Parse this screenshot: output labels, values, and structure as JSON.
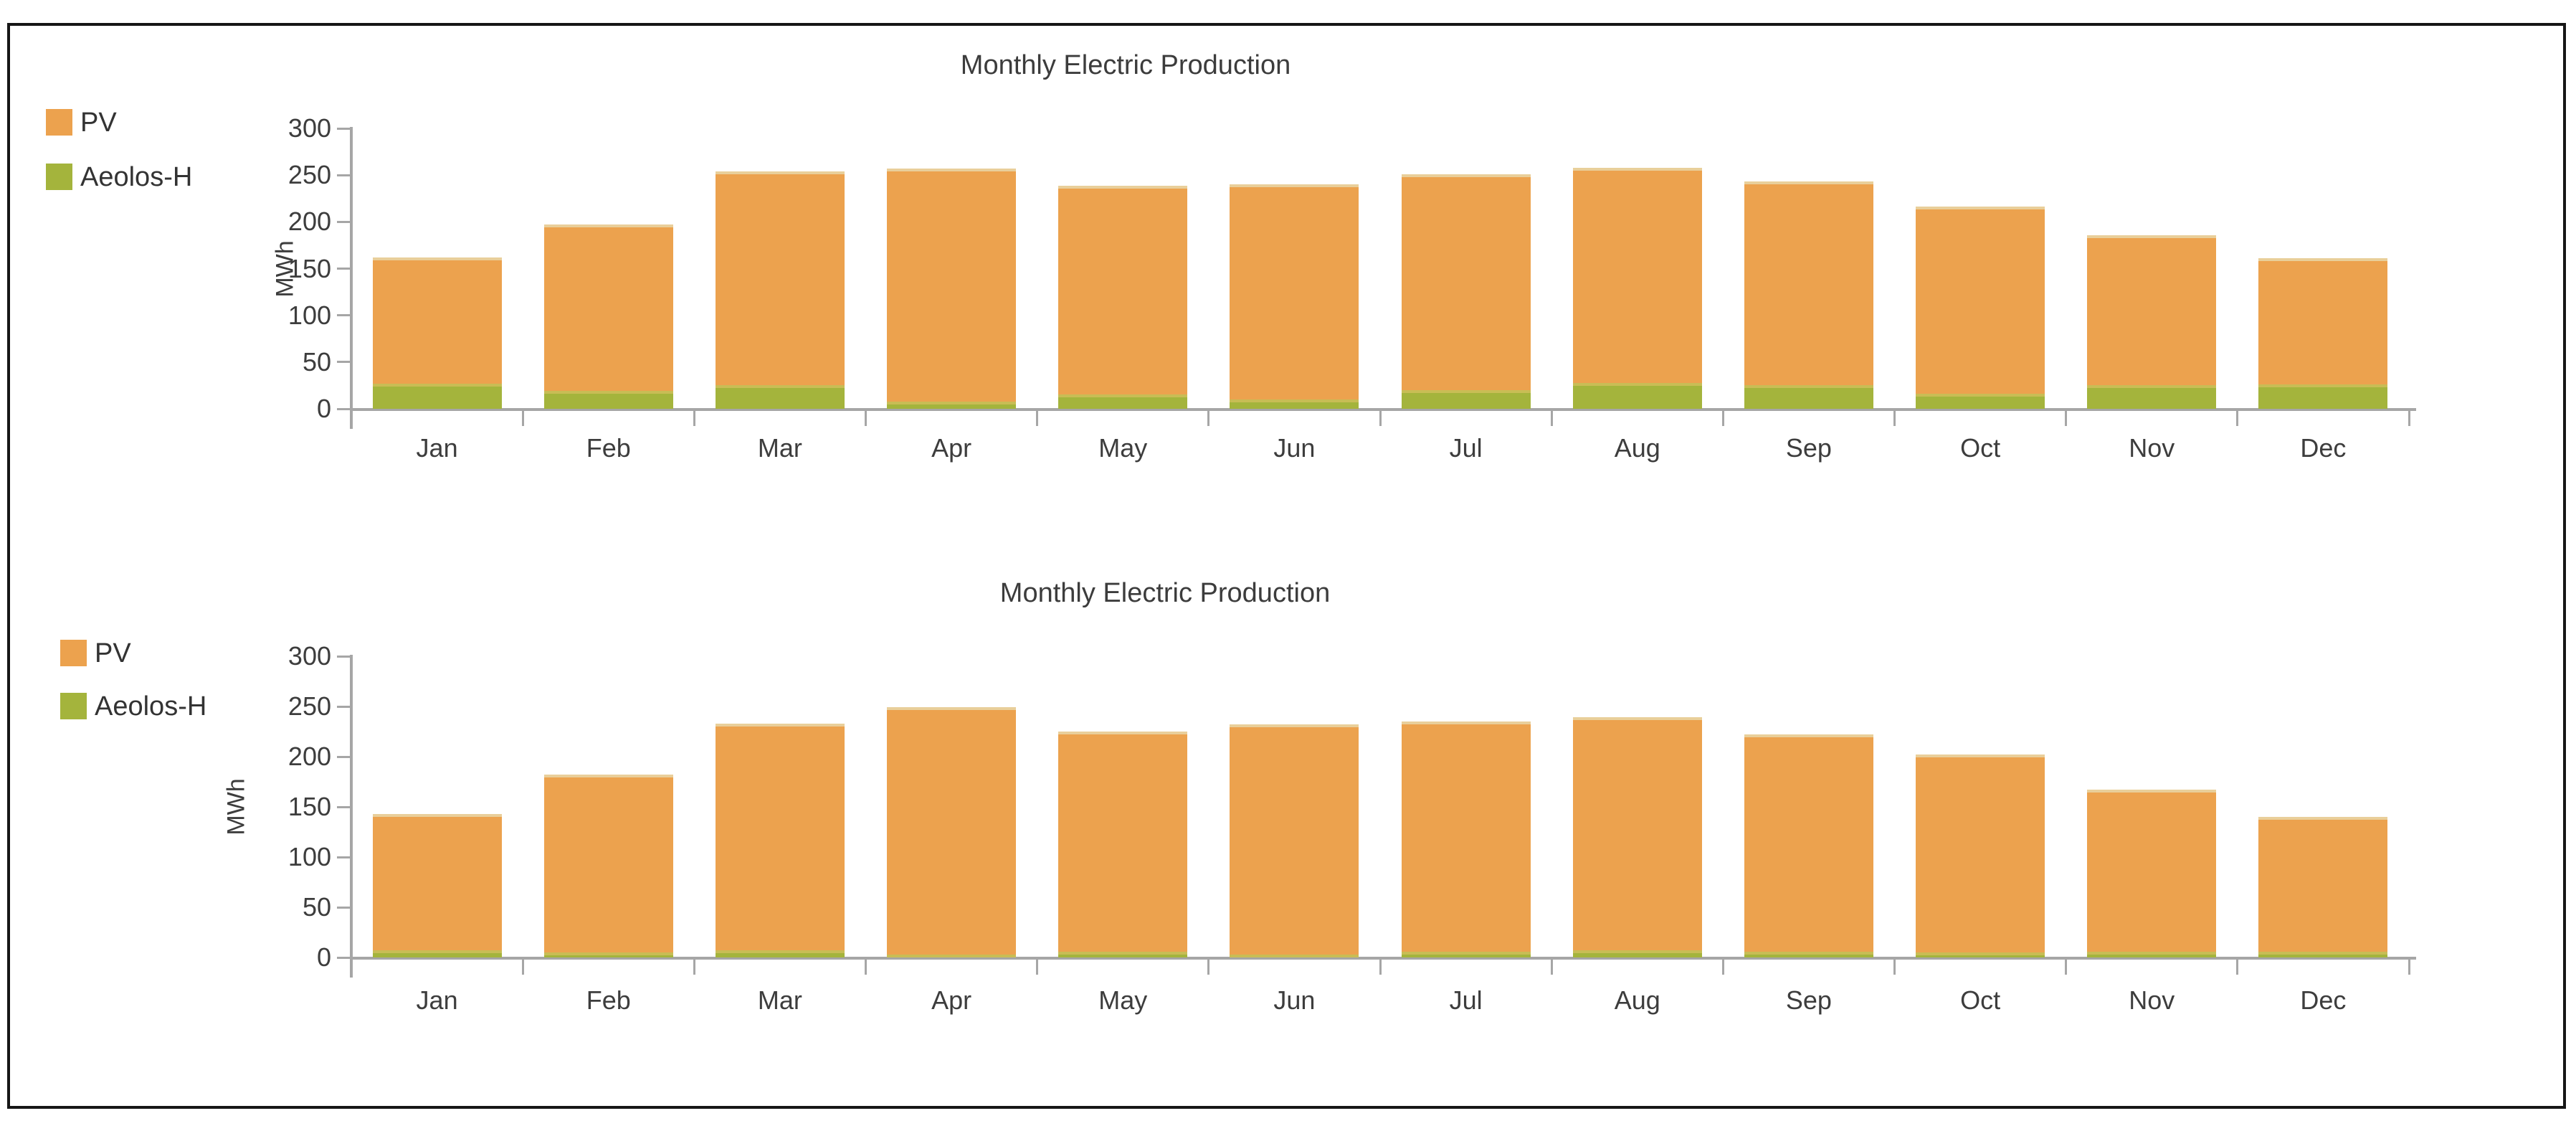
{
  "page": {
    "background_color": "#ffffff",
    "frame_border_color": "#161616"
  },
  "chart_data": [
    {
      "type": "bar",
      "stacked": true,
      "title": "Monthly Electric Production",
      "xlabel": "",
      "ylabel": "MWh",
      "ylim": [
        0,
        300
      ],
      "yticks": [
        0,
        50,
        100,
        150,
        200,
        250,
        300
      ],
      "grid": false,
      "legend_position": "top-left",
      "axis_color": "#a6a6a6",
      "text_color": "#3d3d3d",
      "categories": [
        "Jan",
        "Feb",
        "Mar",
        "Apr",
        "May",
        "Jun",
        "Jul",
        "Aug",
        "Sep",
        "Oct",
        "Nov",
        "Dec"
      ],
      "series": [
        {
          "name": "PV",
          "color": "#eca24e",
          "cap_color": "#e9cf9a",
          "values": [
            135,
            178,
            229,
            249,
            224,
            230,
            231,
            230,
            218,
            200,
            161,
            135
          ]
        },
        {
          "name": "Aeolos-H",
          "color": "#a4b43c",
          "cap_color": "#c8bd55",
          "values": [
            27,
            19,
            25,
            8,
            15,
            10,
            20,
            28,
            25,
            16,
            25,
            26
          ]
        }
      ]
    },
    {
      "type": "bar",
      "stacked": true,
      "title": "Monthly Electric Production",
      "xlabel": "",
      "ylabel": "MWh",
      "ylim": [
        0,
        300
      ],
      "yticks": [
        0,
        50,
        100,
        150,
        200,
        250,
        300
      ],
      "grid": false,
      "legend_position": "top-left",
      "axis_color": "#a6a6a6",
      "text_color": "#3d3d3d",
      "categories": [
        "Jan",
        "Feb",
        "Mar",
        "Apr",
        "May",
        "Jun",
        "Jul",
        "Aug",
        "Sep",
        "Oct",
        "Nov",
        "Dec"
      ],
      "series": [
        {
          "name": "PV",
          "color": "#eca24e",
          "cap_color": "#e9cf9a",
          "values": [
            136,
            177,
            226,
            246,
            219,
            229,
            229,
            232,
            216,
            197,
            161,
            134
          ]
        },
        {
          "name": "Aeolos-H",
          "color": "#a4b43c",
          "cap_color": "#c8bd55",
          "values": [
            7,
            5,
            7,
            3,
            6,
            3,
            6,
            7,
            6,
            5,
            6,
            6
          ]
        }
      ]
    }
  ]
}
